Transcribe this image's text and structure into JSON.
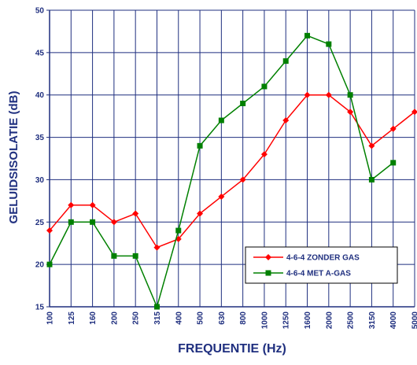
{
  "chart_data": {
    "type": "line",
    "xlabel": "FREQUENTIE (Hz)",
    "ylabel": "GELUIDSISOLATIE (dB)",
    "categories": [
      "100",
      "125",
      "160",
      "200",
      "250",
      "315",
      "400",
      "500",
      "630",
      "800",
      "1000",
      "1250",
      "1600",
      "2000",
      "2500",
      "3150",
      "4000",
      "5000"
    ],
    "series": [
      {
        "name": "4-6-4 ZONDER GAS",
        "color": "#ff0000",
        "marker": "diamond",
        "values": [
          24,
          27,
          27,
          25,
          26,
          22,
          23,
          26,
          28,
          30,
          33,
          37,
          40,
          40,
          38,
          34,
          36,
          38
        ]
      },
      {
        "name": "4-6-4 MET A-GAS",
        "color": "#008000",
        "marker": "square",
        "values": [
          20,
          25,
          25,
          21,
          21,
          15,
          24,
          34,
          37,
          39,
          41,
          44,
          47,
          46,
          40,
          30,
          32,
          null
        ]
      }
    ],
    "ylim": [
      15,
      50
    ],
    "yticks": [
      15,
      20,
      25,
      30,
      35,
      40,
      45,
      50
    ],
    "grid": true,
    "legend": "lower right"
  }
}
